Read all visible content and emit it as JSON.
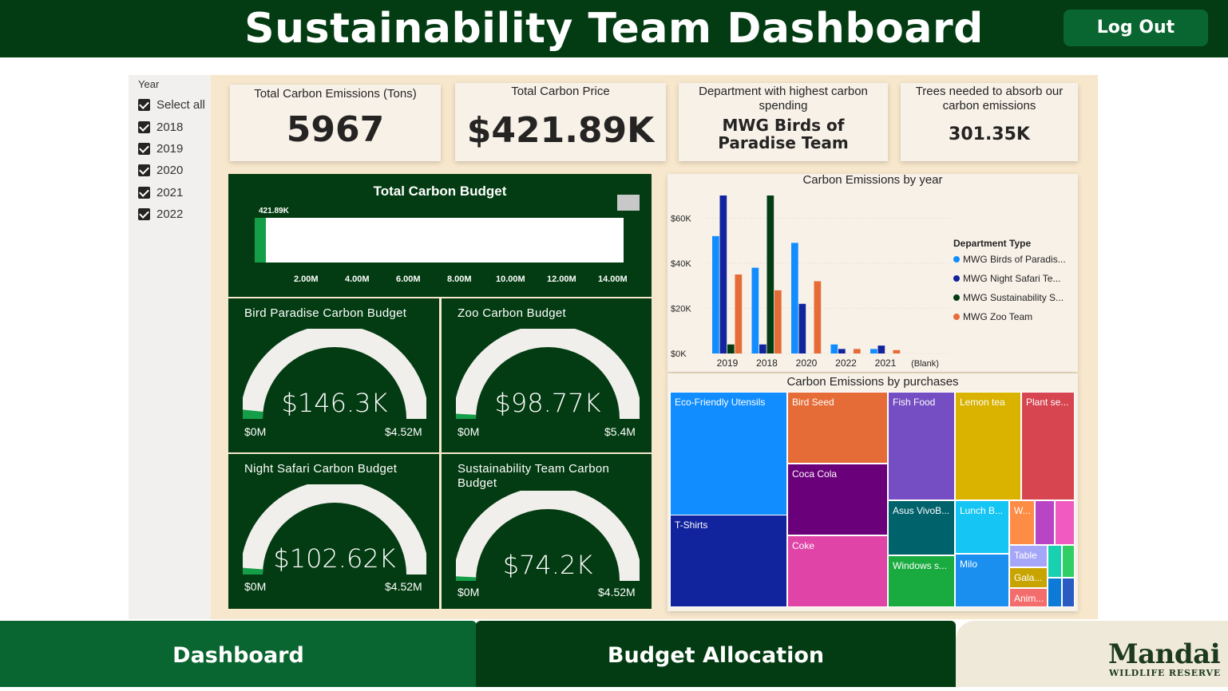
{
  "header": {
    "title": "Sustainability Team Dashboard",
    "logout_label": "Log Out"
  },
  "slicer": {
    "title": "Year",
    "items": [
      {
        "label": "Select all",
        "checked": true
      },
      {
        "label": "2018",
        "checked": true
      },
      {
        "label": "2019",
        "checked": true
      },
      {
        "label": "2020",
        "checked": true
      },
      {
        "label": "2021",
        "checked": true
      },
      {
        "label": "2022",
        "checked": true
      }
    ]
  },
  "kpis": {
    "emissions": {
      "label": "Total Carbon Emissions (Tons)",
      "value": "5967"
    },
    "price": {
      "label": "Total Carbon Price",
      "value": "$421.89K"
    },
    "department": {
      "label": "Department with highest carbon spending",
      "value": "MWG Birds of Paradise Team"
    },
    "trees": {
      "label": "Trees needed to absorb our carbon emissions",
      "value": "301.35K"
    }
  },
  "budget": {
    "title": "Total Carbon Budget",
    "value_label": "421.89K",
    "value": 421890,
    "max": 14500000,
    "ticks": [
      "2.00M",
      "4.00M",
      "6.00M",
      "8.00M",
      "10.00M",
      "12.00M",
      "14.00M"
    ]
  },
  "gauges": {
    "bird": {
      "title": "Bird Paradise Carbon Budget",
      "value_label": "$146.3K",
      "min": "$0M",
      "max": "$4.52M",
      "fraction": 0.032
    },
    "zoo": {
      "title": "Zoo Carbon Budget",
      "value_label": "$98.77K",
      "min": "$0M",
      "max": "$5.4M",
      "fraction": 0.018
    },
    "night": {
      "title": "Night Safari Carbon Budget",
      "value_label": "$102.62K",
      "min": "$0M",
      "max": "$4.52M",
      "fraction": 0.023
    },
    "sustain": {
      "title": "Sustainability Team Carbon Budget",
      "value_label": "$74.2K",
      "min": "$0M",
      "max": "$4.52M",
      "fraction": 0.016
    }
  },
  "bar_chart_title": "Carbon Emissions by year",
  "legend": {
    "title": "Department Type",
    "items": [
      {
        "label": "MWG Birds of Paradis...",
        "color": "#118dff"
      },
      {
        "label": "MWG Night Safari Te...",
        "color": "#12239e"
      },
      {
        "label": "MWG Sustainability S...",
        "color": "#033c12"
      },
      {
        "label": "MWG Zoo Team",
        "color": "#e66c37"
      }
    ]
  },
  "chart_data": {
    "type": "bar",
    "title": "Carbon Emissions by year",
    "categories": [
      "2019",
      "2018",
      "2020",
      "2022",
      "2021",
      "(Blank)"
    ],
    "y_ticks": [
      "$60K",
      "$40K",
      "$20K",
      "$0K"
    ],
    "ylim": [
      0,
      70000
    ],
    "series": [
      {
        "name": "MWG Birds of Paradis...",
        "color": "#118dff",
        "values": [
          52000,
          38000,
          49000,
          4000,
          2000,
          0
        ]
      },
      {
        "name": "MWG Night Safari Te...",
        "color": "#12239e",
        "values": [
          70000,
          4000,
          22000,
          2000,
          3500,
          0
        ]
      },
      {
        "name": "MWG Sustainability S...",
        "color": "#033c12",
        "values": [
          4000,
          70000,
          0,
          0,
          0,
          0
        ]
      },
      {
        "name": "MWG Zoo Team",
        "color": "#e66c37",
        "values": [
          35000,
          28000,
          32000,
          2000,
          1500,
          0
        ]
      }
    ]
  },
  "treemap": {
    "title": "Carbon Emissions by purchases",
    "cells": [
      {
        "label": "Eco-Friendly Utensils",
        "color": "#118dff"
      },
      {
        "label": "T-Shirts",
        "color": "#12239e"
      },
      {
        "label": "Bird Seed",
        "color": "#e66c37"
      },
      {
        "label": "Coca Cola",
        "color": "#6b007b"
      },
      {
        "label": "Coke",
        "color": "#e044a7"
      },
      {
        "label": "Fish Food",
        "color": "#744ec2"
      },
      {
        "label": "Asus VivoB...",
        "color": "#00626b"
      },
      {
        "label": "Windows s...",
        "color": "#1aab40"
      },
      {
        "label": "Lemon tea",
        "color": "#d9b300"
      },
      {
        "label": "Lunch B...",
        "color": "#15c6f4"
      },
      {
        "label": "Milo",
        "color": "#1a8ff0"
      },
      {
        "label": "Plant se...",
        "color": "#d64550"
      },
      {
        "label": "W...",
        "color": "#fd8c46"
      },
      {
        "label": "",
        "color": "#b845c4"
      },
      {
        "label": "",
        "color": "#f05ac1"
      },
      {
        "label": "Table",
        "color": "#a6a6f8"
      },
      {
        "label": "",
        "color": "#18d1b0"
      },
      {
        "label": "",
        "color": "#2fcf63"
      },
      {
        "label": "Gala...",
        "color": "#c8a400"
      },
      {
        "label": "",
        "color": "#0c7ad6"
      },
      {
        "label": "Anim...",
        "color": "#f46d6d"
      },
      {
        "label": "",
        "color": "#2a5bc2"
      }
    ]
  },
  "nav": {
    "dashboard": "Dashboard",
    "budget": "Budget Allocation"
  },
  "logo": {
    "name": "Mandai",
    "sub": "WILDLIFE RESERVE"
  }
}
